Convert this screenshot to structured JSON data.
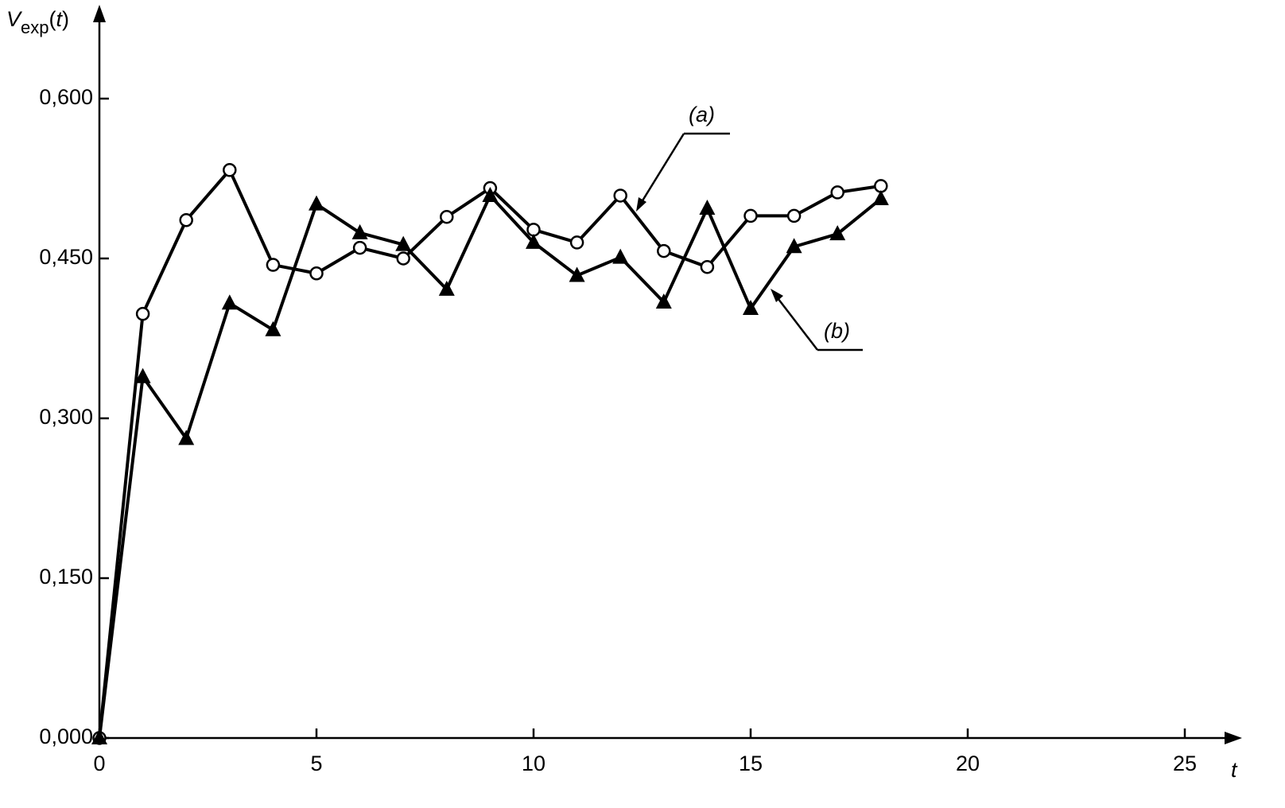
{
  "chart_data": {
    "type": "line",
    "ylabel": [
      "V",
      "exp",
      "(",
      "t",
      ")"
    ],
    "xlabel": "t",
    "x": [
      0,
      1,
      2,
      3,
      4,
      5,
      6,
      7,
      8,
      9,
      10,
      11,
      12,
      13,
      14,
      15,
      16,
      17,
      18
    ],
    "series": [
      {
        "name": "(a)",
        "color": "#000000",
        "marker": "circle",
        "values": [
          0,
          0.398,
          0.486,
          0.533,
          0.444,
          0.436,
          0.46,
          0.45,
          0.489,
          0.516,
          0.477,
          0.465,
          0.509,
          0.457,
          0.442,
          0.49,
          0.49,
          0.512,
          0.518
        ]
      },
      {
        "name": "(b)",
        "color": "#000000",
        "marker": "triangle",
        "values": [
          0,
          0.339,
          0.281,
          0.408,
          0.383,
          0.501,
          0.474,
          0.463,
          0.421,
          0.509,
          0.465,
          0.434,
          0.451,
          0.409,
          0.497,
          0.403,
          0.461,
          0.473,
          0.506
        ]
      }
    ],
    "xlim": [
      0,
      26.3
    ],
    "xticks": [
      0,
      5,
      10,
      15,
      20,
      25
    ],
    "ylim": [
      0,
      0.685
    ],
    "yticks": [
      {
        "value": 0,
        "label": "0,000"
      },
      {
        "value": 0.15,
        "label": "0,150"
      },
      {
        "value": 0.3,
        "label": "0,300"
      },
      {
        "value": 0.45,
        "label": "0,450"
      },
      {
        "value": 0.6,
        "label": "0,600"
      }
    ],
    "grid": false
  }
}
